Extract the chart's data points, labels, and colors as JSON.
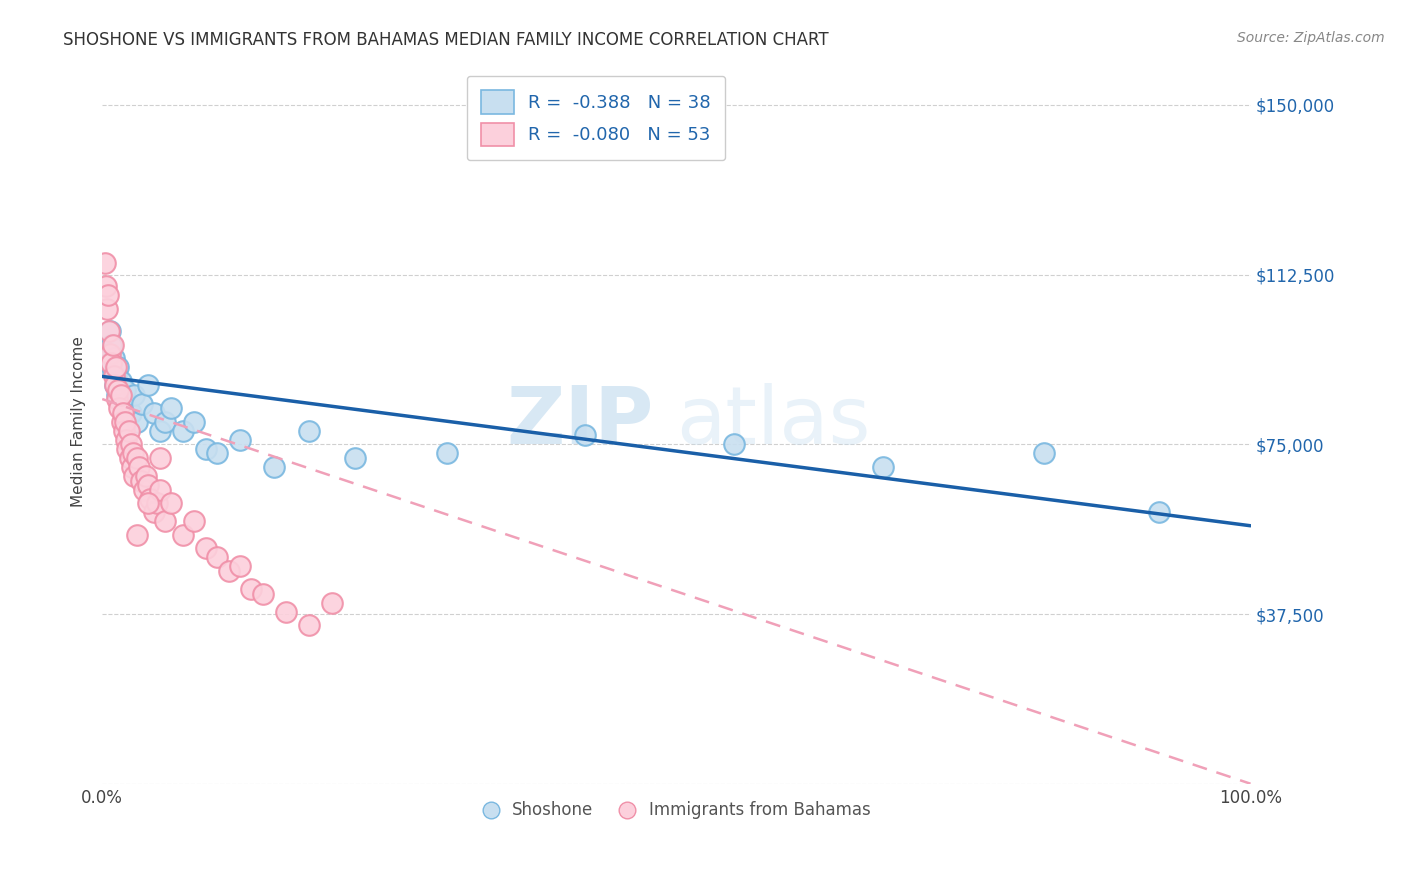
{
  "title": "SHOSHONE VS IMMIGRANTS FROM BAHAMAS MEDIAN FAMILY INCOME CORRELATION CHART",
  "source": "Source: ZipAtlas.com",
  "ylabel": "Median Family Income",
  "xlim": [
    0,
    1.0
  ],
  "ylim": [
    0,
    160000
  ],
  "yticks": [
    0,
    37500,
    75000,
    112500,
    150000
  ],
  "ytick_labels": [
    "",
    "$37,500",
    "$75,000",
    "$112,500",
    "$150,000"
  ],
  "xticks": [
    0,
    0.2,
    0.4,
    0.6,
    0.8,
    1.0
  ],
  "xtick_labels": [
    "0.0%",
    "",
    "",
    "",
    "",
    "100.0%"
  ],
  "background_color": "#ffffff",
  "grid_color": "#d0d0d0",
  "watermark_zip": "ZIP",
  "watermark_atlas": "atlas",
  "legend_r1": "-0.388",
  "legend_n1": "38",
  "legend_r2": "-0.080",
  "legend_n2": "53",
  "blue_edge_color": "#7ab8e0",
  "pink_edge_color": "#f090a8",
  "blue_fill_color": "#c8dff0",
  "pink_fill_color": "#fcd0dc",
  "blue_line_color": "#1a5fa8",
  "pink_line_color": "#f0a0b8",
  "shoshone_x": [
    0.004,
    0.006,
    0.007,
    0.008,
    0.009,
    0.01,
    0.011,
    0.012,
    0.013,
    0.014,
    0.015,
    0.016,
    0.018,
    0.02,
    0.022,
    0.025,
    0.028,
    0.03,
    0.035,
    0.04,
    0.045,
    0.05,
    0.055,
    0.06,
    0.07,
    0.08,
    0.09,
    0.1,
    0.12,
    0.15,
    0.18,
    0.22,
    0.3,
    0.42,
    0.55,
    0.68,
    0.82,
    0.92
  ],
  "shoshone_y": [
    95000,
    93000,
    100000,
    97000,
    91000,
    94000,
    88000,
    90000,
    86000,
    92000,
    85000,
    89000,
    84000,
    87000,
    83000,
    82000,
    86000,
    80000,
    84000,
    88000,
    82000,
    78000,
    80000,
    83000,
    78000,
    80000,
    74000,
    73000,
    76000,
    70000,
    78000,
    72000,
    73000,
    77000,
    75000,
    70000,
    73000,
    60000
  ],
  "bahamas_x": [
    0.002,
    0.003,
    0.004,
    0.005,
    0.006,
    0.007,
    0.008,
    0.009,
    0.01,
    0.011,
    0.012,
    0.013,
    0.014,
    0.015,
    0.016,
    0.017,
    0.018,
    0.019,
    0.02,
    0.021,
    0.022,
    0.023,
    0.024,
    0.025,
    0.026,
    0.027,
    0.028,
    0.03,
    0.032,
    0.034,
    0.036,
    0.038,
    0.04,
    0.042,
    0.045,
    0.048,
    0.05,
    0.055,
    0.06,
    0.07,
    0.08,
    0.09,
    0.1,
    0.11,
    0.12,
    0.13,
    0.14,
    0.16,
    0.18,
    0.2,
    0.03,
    0.04,
    0.05
  ],
  "bahamas_y": [
    115000,
    110000,
    105000,
    108000,
    100000,
    95000,
    93000,
    97000,
    90000,
    88000,
    92000,
    85000,
    87000,
    83000,
    86000,
    80000,
    82000,
    78000,
    80000,
    76000,
    74000,
    78000,
    72000,
    75000,
    70000,
    73000,
    68000,
    72000,
    70000,
    67000,
    65000,
    68000,
    66000,
    63000,
    60000,
    62000,
    65000,
    58000,
    62000,
    55000,
    58000,
    52000,
    50000,
    47000,
    48000,
    43000,
    42000,
    38000,
    35000,
    40000,
    55000,
    62000,
    72000
  ],
  "shoshone_trend_x": [
    0.0,
    1.0
  ],
  "shoshone_trend_y": [
    90000,
    57000
  ],
  "bahamas_trend_x": [
    0.0,
    1.0
  ],
  "bahamas_trend_y": [
    85000,
    0
  ]
}
